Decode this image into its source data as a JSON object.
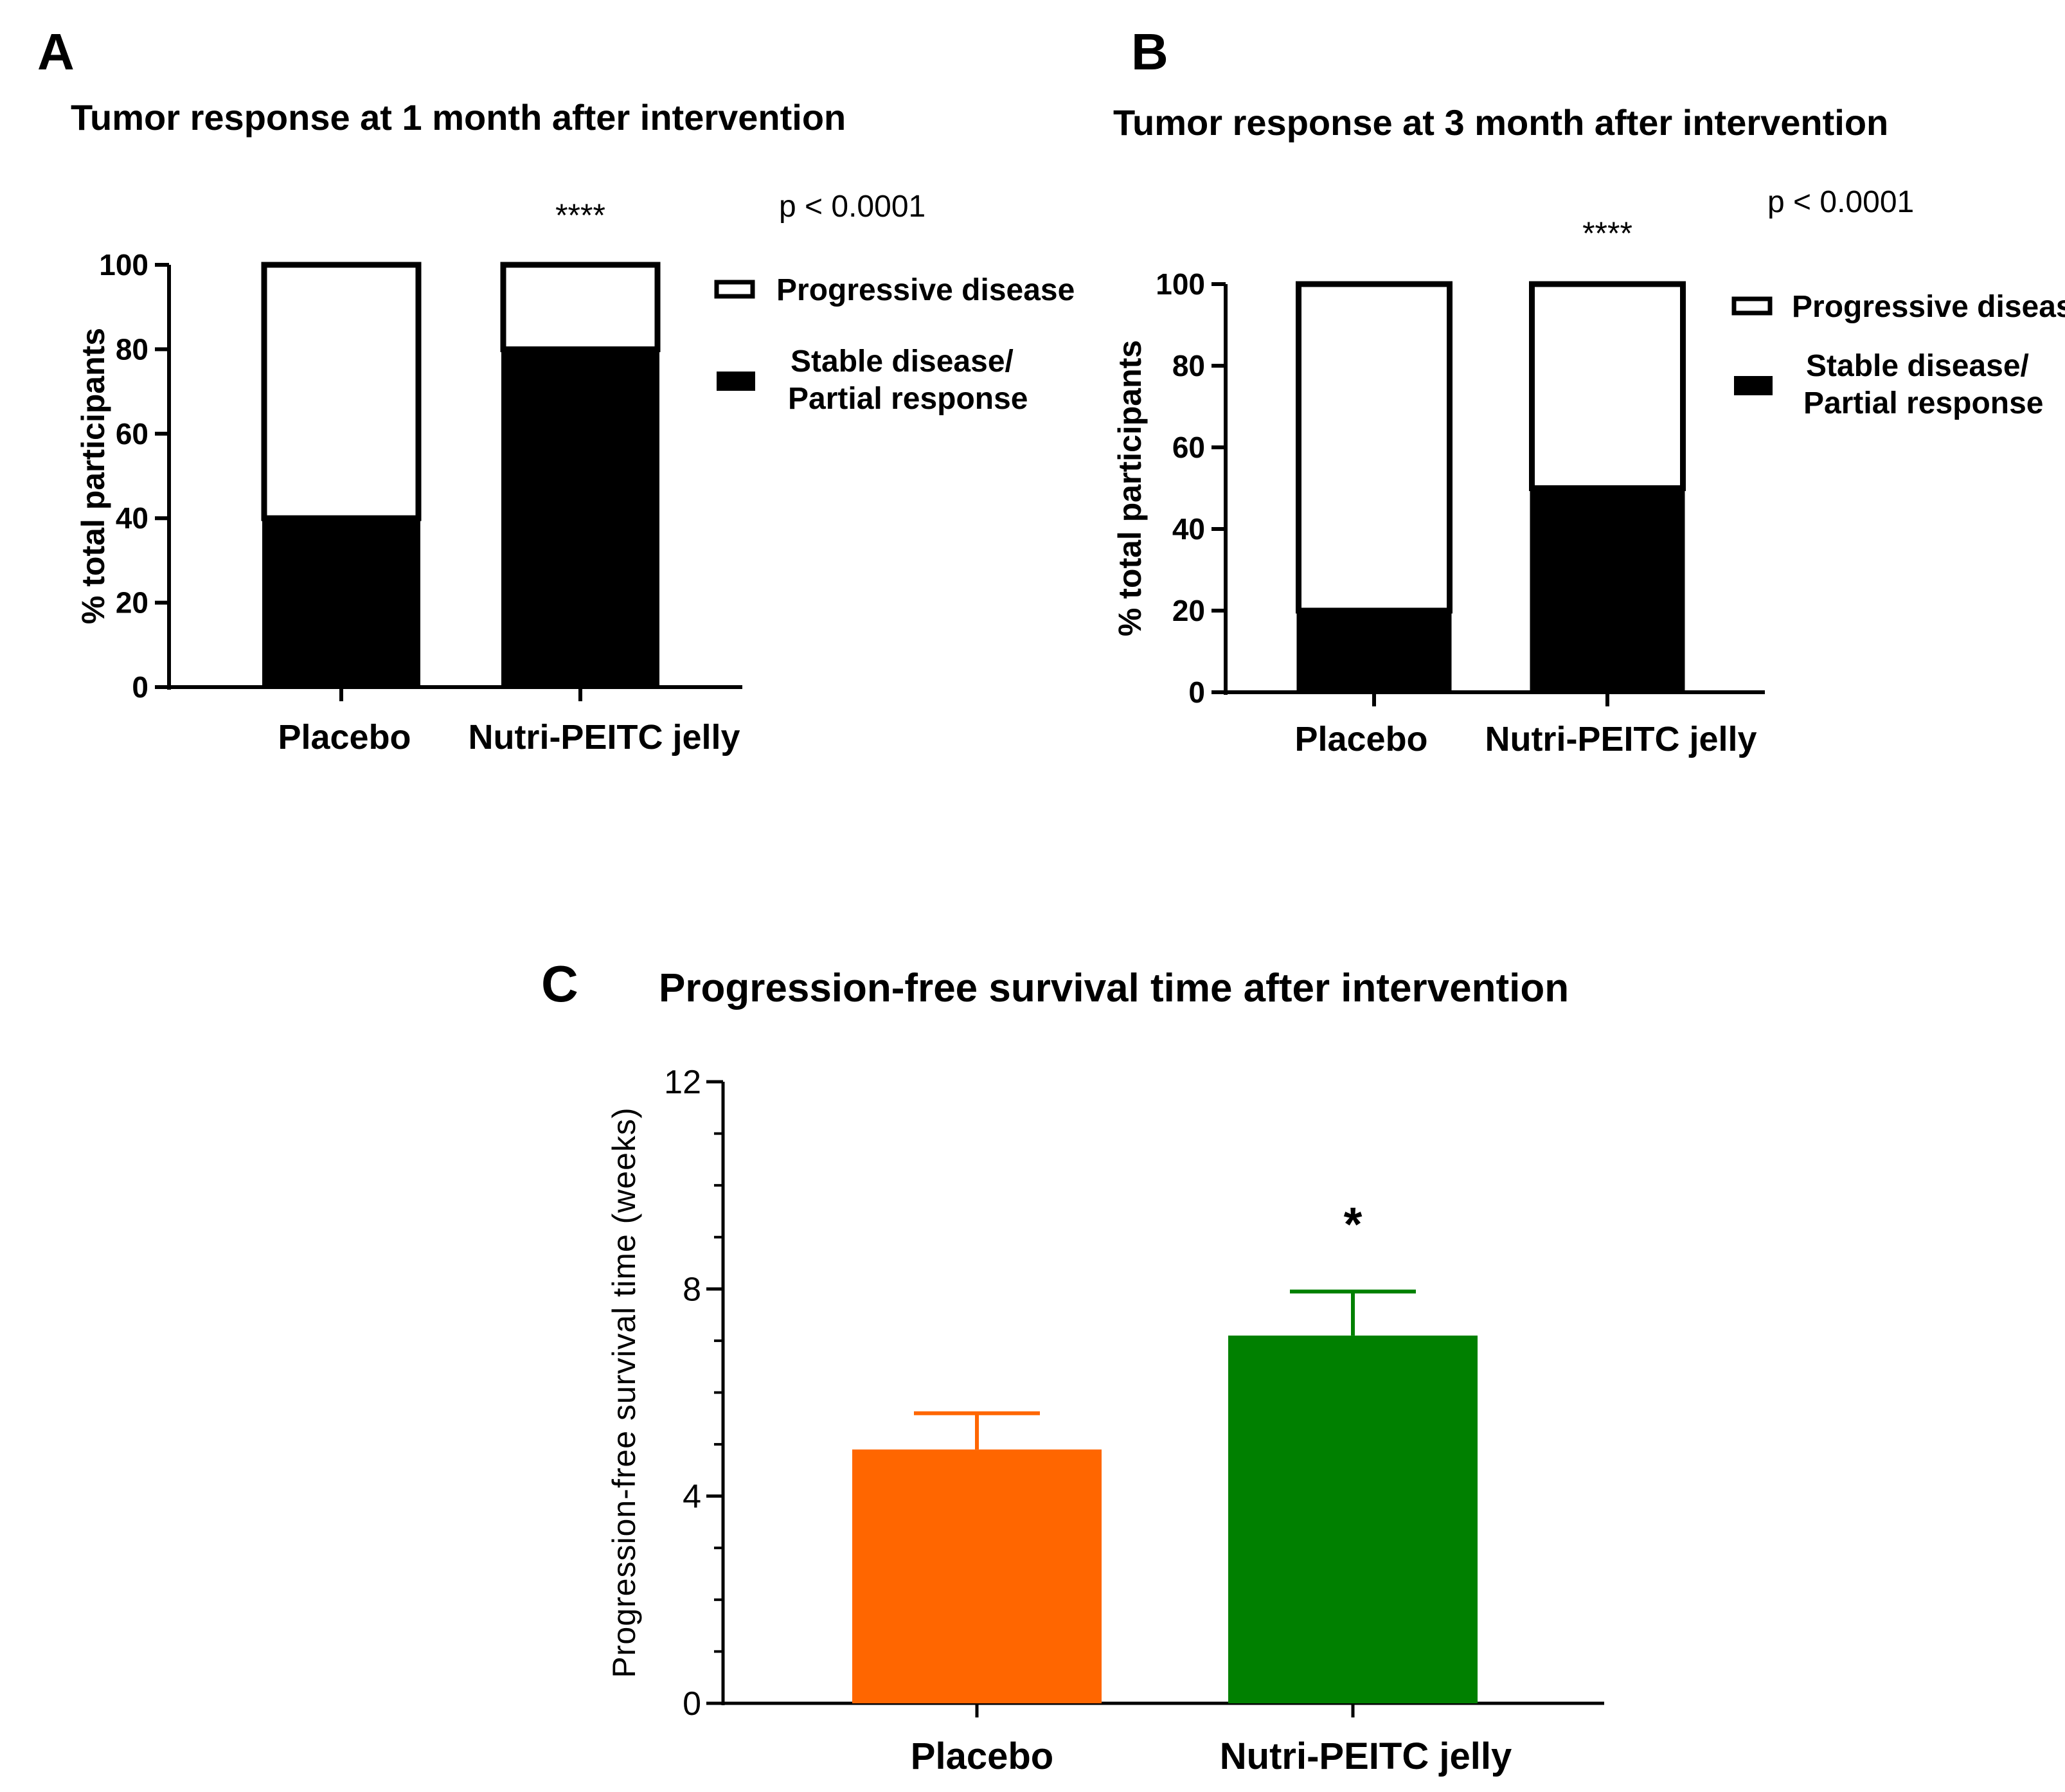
{
  "panels": {
    "A": {
      "letter": "A"
    },
    "B": {
      "letter": "B"
    },
    "C": {
      "letter": "C"
    }
  },
  "colors": {
    "stacked_filled": "#000000",
    "stacked_empty": "#ffffff",
    "placebo": "#ff6600",
    "nutri": "#008000"
  },
  "chart_data": [
    {
      "panel": "A",
      "type": "bar",
      "stacked": true,
      "title": "Tumor response at 1 month after intervention",
      "ylabel": "% total participants",
      "xlabel": "",
      "categories": [
        "Placebo",
        "Nutri-PEITC jelly"
      ],
      "yticks": [
        0,
        20,
        40,
        60,
        80,
        100
      ],
      "ylim": [
        0,
        100
      ],
      "series": [
        {
          "name": "Stable disease/ Partial response",
          "legend_lines": [
            "Stable disease/",
            "Partial response"
          ],
          "values": [
            40,
            80
          ]
        },
        {
          "name": "Progressive disease",
          "legend_lines": [
            "Progressive disease"
          ],
          "values": [
            60,
            20
          ]
        }
      ],
      "annotations": {
        "significance": "****",
        "pvalue": "p < 0.0001"
      },
      "legend_position": "right"
    },
    {
      "panel": "B",
      "type": "bar",
      "stacked": true,
      "title": "Tumor response at 3 month after intervention",
      "ylabel": "% total participants",
      "xlabel": "",
      "categories": [
        "Placebo",
        "Nutri-PEITC jelly"
      ],
      "yticks": [
        0,
        20,
        40,
        60,
        80,
        100
      ],
      "ylim": [
        0,
        100
      ],
      "series": [
        {
          "name": "Stable disease/ Partial response",
          "legend_lines": [
            "Stable disease/",
            "Partial response"
          ],
          "values": [
            20,
            50
          ]
        },
        {
          "name": "Progressive disease",
          "legend_lines": [
            "Progressive disease"
          ],
          "values": [
            80,
            50
          ]
        }
      ],
      "annotations": {
        "significance": "****",
        "pvalue": "p < 0.0001"
      },
      "legend_position": "right"
    },
    {
      "panel": "C",
      "type": "bar",
      "title": "Progression-free survival time after intervention",
      "ylabel": "Progression-free survival time (weeks)",
      "xlabel": "",
      "categories": [
        "Placebo",
        "Nutri-PEITC jelly"
      ],
      "values": [
        4.9,
        7.1
      ],
      "errors": [
        0.7,
        0.85
      ],
      "yticks": [
        0,
        4,
        8,
        12
      ],
      "minor_ticks_per_major": 4,
      "ylim": [
        0,
        12
      ],
      "annotations": {
        "significance": "*"
      },
      "grid": false
    }
  ]
}
